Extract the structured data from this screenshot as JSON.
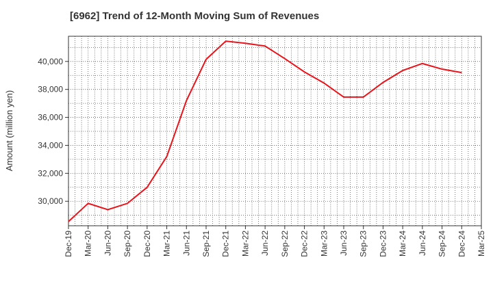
{
  "chart_data": {
    "type": "line",
    "title": "[6962]  Trend of 12-Month Moving Sum of Revenues",
    "xlabel": "",
    "ylabel": "Amount (million yen)",
    "x": [
      "Dec-19",
      "Mar-20",
      "Jun-20",
      "Sep-20",
      "Dec-20",
      "Mar-21",
      "Jun-21",
      "Sep-21",
      "Dec-21",
      "Mar-22",
      "Jun-22",
      "Sep-22",
      "Dec-22",
      "Mar-23",
      "Jun-23",
      "Sep-23",
      "Dec-23",
      "Mar-24",
      "Jun-24",
      "Sep-24",
      "Dec-24"
    ],
    "x_ticks": [
      "Dec-19",
      "Mar-20",
      "Jun-20",
      "Sep-20",
      "Dec-20",
      "Mar-21",
      "Jun-21",
      "Sep-21",
      "Dec-21",
      "Mar-22",
      "Jun-22",
      "Sep-22",
      "Dec-22",
      "Mar-23",
      "Jun-23",
      "Sep-23",
      "Dec-23",
      "Mar-24",
      "Jun-24",
      "Sep-24",
      "Dec-24",
      "Mar-25"
    ],
    "series": [
      {
        "values": [
          28550,
          29850,
          29400,
          29850,
          31000,
          33200,
          37200,
          40150,
          41450,
          41300,
          41100,
          40200,
          39250,
          38450,
          37450,
          37450,
          38500,
          39350,
          39850,
          39450,
          39200
        ]
      }
    ],
    "ylim": [
      28250,
      41800
    ],
    "y_ticks": [
      30000,
      32000,
      34000,
      36000,
      38000,
      40000
    ],
    "y_tick_labels": [
      "30,000",
      "32,000",
      "34,000",
      "36,000",
      "38,000",
      "40,000"
    ],
    "line_color": "#e8141b",
    "grid": true,
    "legend": "none"
  }
}
